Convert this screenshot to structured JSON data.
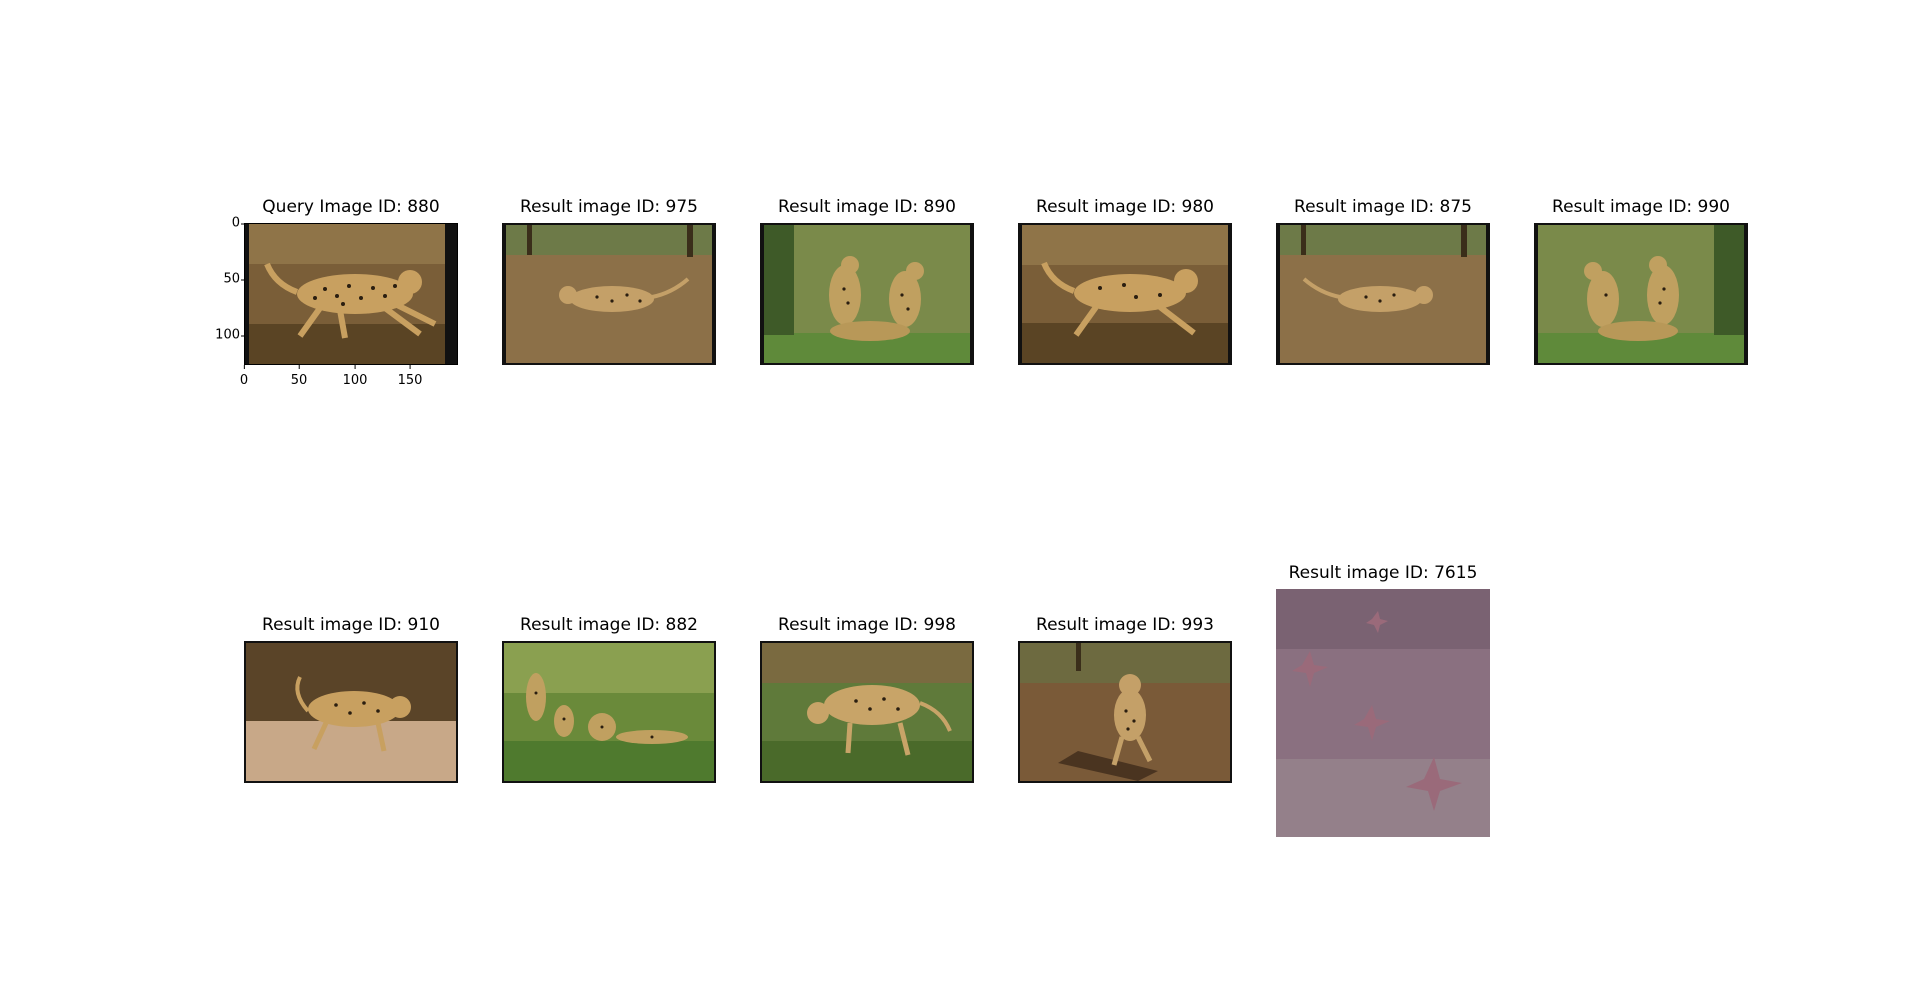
{
  "query": {
    "title": "Query Image ID: 880",
    "y_ticks": [
      "0",
      "50",
      "100"
    ],
    "x_ticks": [
      "0",
      "50",
      "100",
      "150"
    ],
    "image": "cheetah-running-left-to-right"
  },
  "results": [
    {
      "title": "Result image ID: 975",
      "image": "cheetah-running"
    },
    {
      "title": "Result image ID: 890",
      "image": "cheetah-group"
    },
    {
      "title": "Result image ID: 980",
      "image": "cheetah-running"
    },
    {
      "title": "Result image ID: 875",
      "image": "cheetah-running"
    },
    {
      "title": "Result image ID: 990",
      "image": "cheetah-group"
    },
    {
      "title": "Result image ID: 910",
      "image": "cheetah-walking"
    },
    {
      "title": "Result image ID: 882",
      "image": "cheetah-cubs-on-grass"
    },
    {
      "title": "Result image ID: 998",
      "image": "cheetah-stalking"
    },
    {
      "title": "Result image ID: 993",
      "image": "cheetah-walking-toward"
    },
    {
      "title": "Result image ID: 7615",
      "image": "starfish-on-sand"
    }
  ],
  "colors": {
    "savanna_dirt": "#8a6a3e",
    "savanna_dark": "#4a3a20",
    "grass": "#5f8a3a",
    "cheetah": "#c8a060",
    "spots": "#2a1e10",
    "sand_purple": "#8a7080",
    "starfish": "#9a6a7a"
  }
}
